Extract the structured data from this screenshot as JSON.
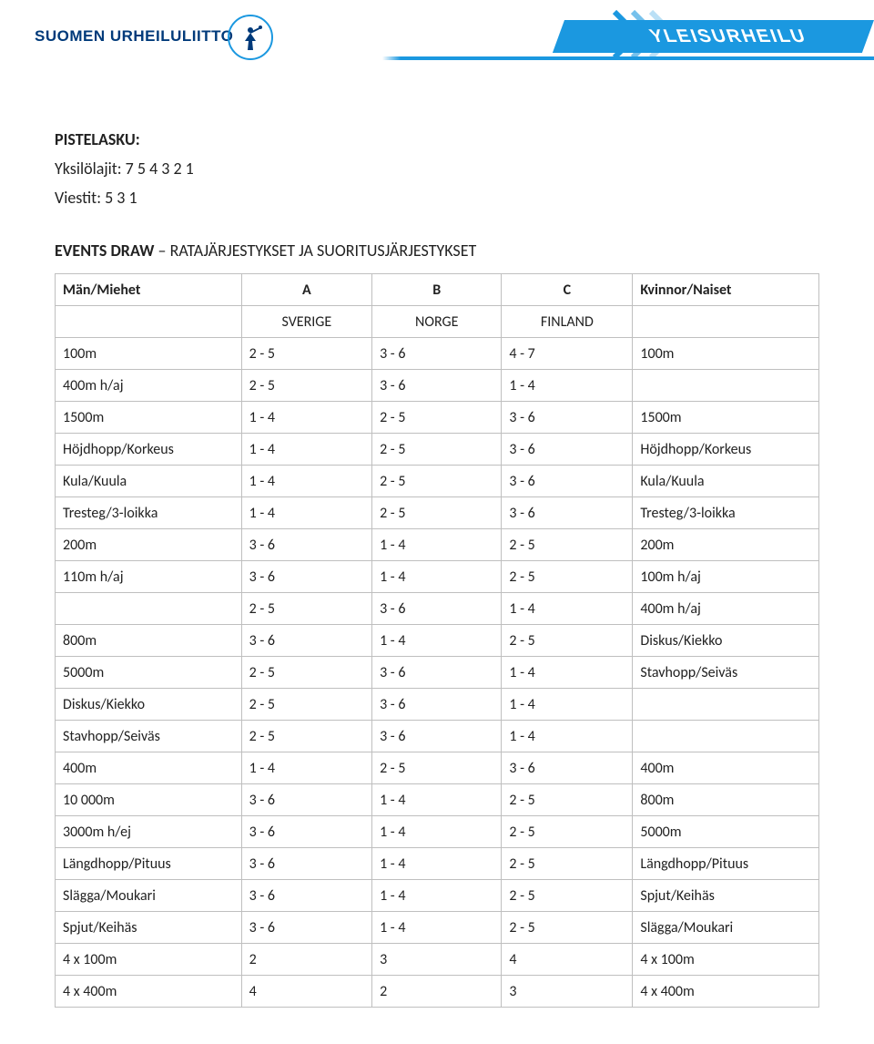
{
  "brand_left": "SUOMEN URHEILULIITTO",
  "brand_right": "YLEISURHEILU",
  "section_heading": "PISTELASKU",
  "score_individual_label": "Yksilölajit: 7 5 4 3 2 1",
  "score_relay_label": "Viestit: 5 3 1",
  "events_heading_prefix": "EVENTS DRAW",
  "events_heading_rest": " – RATAJÄRJESTYKSET JA SUORITUSJÄRJESTYKSET",
  "table": {
    "header": {
      "col1": "Män/Miehet",
      "a": "A",
      "b": "B",
      "c": "C",
      "col5": "Kvinnor/Naiset"
    },
    "countries": {
      "a": "SVERIGE",
      "b": "NORGE",
      "c": "FINLAND"
    },
    "rows": [
      {
        "event": "100m",
        "a": "2 - 5",
        "b": "3 - 6",
        "c": "4 - 7",
        "right": "100m"
      },
      {
        "event": "400m h/aj",
        "a": "2 - 5",
        "b": "3 - 6",
        "c": "1 - 4",
        "right": ""
      },
      {
        "event": "1500m",
        "a": "1 - 4",
        "b": "2 - 5",
        "c": "3 - 6",
        "right": "1500m"
      },
      {
        "event": "Höjdhopp/Korkeus",
        "a": "1 - 4",
        "b": "2 - 5",
        "c": "3 - 6",
        "right": "Höjdhopp/Korkeus"
      },
      {
        "event": "Kula/Kuula",
        "a": "1 - 4",
        "b": "2 - 5",
        "c": "3 - 6",
        "right": "Kula/Kuula"
      },
      {
        "event": "Tresteg/3-loikka",
        "a": "1 - 4",
        "b": "2 - 5",
        "c": "3 - 6",
        "right": "Tresteg/3-loikka"
      },
      {
        "event": "200m",
        "a": "3 - 6",
        "b": "1 - 4",
        "c": "2 - 5",
        "right": "200m"
      },
      {
        "event": "110m h/aj",
        "a": "3 - 6",
        "b": "1 - 4",
        "c": "2 - 5",
        "right": "100m h/aj"
      },
      {
        "event": "",
        "a": "2 - 5",
        "b": "3 - 6",
        "c": "1 - 4",
        "right": "400m h/aj"
      },
      {
        "event": "800m",
        "a": "3 - 6",
        "b": "1 - 4",
        "c": "2 - 5",
        "right": "Diskus/Kiekko"
      },
      {
        "event": "5000m",
        "a": "2 - 5",
        "b": "3 - 6",
        "c": "1 - 4",
        "right": "Stavhopp/Seiväs"
      },
      {
        "event": "Diskus/Kiekko",
        "a": "2 - 5",
        "b": "3 - 6",
        "c": "1 - 4",
        "right": ""
      },
      {
        "event": "Stavhopp/Seiväs",
        "a": "2 - 5",
        "b": "3 - 6",
        "c": "1 - 4",
        "right": ""
      },
      {
        "event": "400m",
        "a": "1 - 4",
        "b": "2 - 5",
        "c": "3 - 6",
        "right": "400m"
      },
      {
        "event": "10 000m",
        "a": "3 - 6",
        "b": "1 - 4",
        "c": "2 - 5",
        "right": "800m"
      },
      {
        "event": "3000m h/ej",
        "a": "3 - 6",
        "b": "1 - 4",
        "c": "2 - 5",
        "right": "5000m"
      },
      {
        "event": "Längdhopp/Pituus",
        "a": "3 - 6",
        "b": "1 - 4",
        "c": "2 - 5",
        "right": "Längdhopp/Pituus"
      },
      {
        "event": "Slägga/Moukari",
        "a": "3 - 6",
        "b": "1 - 4",
        "c": "2 - 5",
        "right": "Spjut/Keihäs"
      },
      {
        "event": "Spjut/Keihäs",
        "a": "3 - 6",
        "b": "1 - 4",
        "c": "2 - 5",
        "right": "Slägga/Moukari"
      },
      {
        "event": "4 x 100m",
        "a": "2",
        "b": "3",
        "c": "4",
        "right": "4 x 100m"
      },
      {
        "event": "4 x 400m",
        "a": "4",
        "b": "2",
        "c": "3",
        "right": "4 x 400m"
      }
    ]
  },
  "colors": {
    "brand_blue": "#003a7a",
    "banner_blue": "#1b98e0",
    "border_gray": "#bfbfbf",
    "text": "#222222",
    "background": "#ffffff"
  }
}
